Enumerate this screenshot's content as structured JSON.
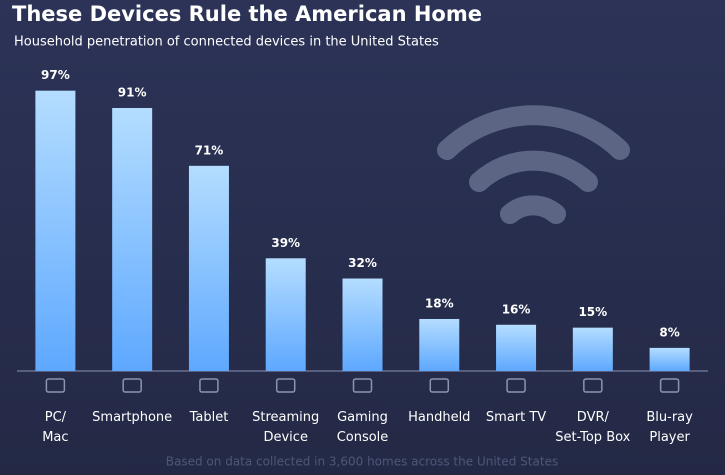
{
  "chart_data": {
    "type": "bar",
    "title": "These Devices Rule the American Home",
    "subtitle": "Household penetration of connected devices in the United States",
    "footnote": "Based on data collected in 3,600 homes across the United States",
    "categories": [
      "PC/\nMac",
      "Smartphone",
      "Tablet",
      "Streaming\nDevice",
      "Gaming\nConsole",
      "Handheld",
      "Smart TV",
      "DVR/\nSet-Top Box",
      "Blu-ray\nPlayer"
    ],
    "values": [
      97,
      91,
      71,
      39,
      32,
      18,
      16,
      15,
      8
    ],
    "value_labels": [
      "97%",
      "91%",
      "71%",
      "39%",
      "32%",
      "18%",
      "16%",
      "15%",
      "8%"
    ],
    "color": "#7cc0ff",
    "ylim": [
      0,
      100
    ]
  }
}
